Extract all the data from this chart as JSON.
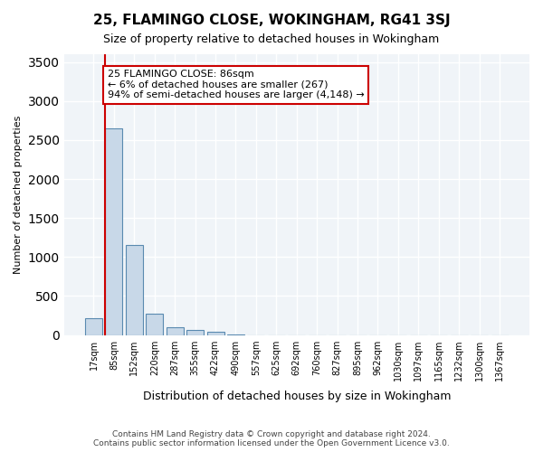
{
  "title": "25, FLAMINGO CLOSE, WOKINGHAM, RG41 3SJ",
  "subtitle": "Size of property relative to detached houses in Wokingham",
  "xlabel": "Distribution of detached houses by size in Wokingham",
  "ylabel": "Number of detached properties",
  "bar_color": "#c8d8e8",
  "bar_edge_color": "#5a8ab0",
  "categories": [
    "17sqm",
    "85sqm",
    "152sqm",
    "220sqm",
    "287sqm",
    "355sqm",
    "422sqm",
    "490sqm",
    "557sqm",
    "625sqm",
    "692sqm",
    "760sqm",
    "827sqm",
    "895sqm",
    "962sqm",
    "1030sqm",
    "1097sqm",
    "1165sqm",
    "1232sqm",
    "1300sqm",
    "1367sqm"
  ],
  "values": [
    220,
    2650,
    1150,
    270,
    100,
    60,
    40,
    4,
    0,
    0,
    0,
    0,
    0,
    0,
    0,
    0,
    0,
    0,
    0,
    0,
    0
  ],
  "ylim": [
    0,
    3600
  ],
  "yticks": [
    0,
    500,
    1000,
    1500,
    2000,
    2500,
    3000,
    3500
  ],
  "annotation_text": "25 FLAMINGO CLOSE: 86sqm\n← 6% of detached houses are smaller (267)\n94% of semi-detached houses are larger (4,148) →",
  "annotation_box_color": "#ffffff",
  "annotation_box_edge_color": "#cc0000",
  "property_line_x": 1,
  "property_line_color": "#cc0000",
  "background_color": "#f0f4f8",
  "grid_color": "#ffffff",
  "footer": "Contains HM Land Registry data © Crown copyright and database right 2024.\nContains public sector information licensed under the Open Government Licence v3.0."
}
